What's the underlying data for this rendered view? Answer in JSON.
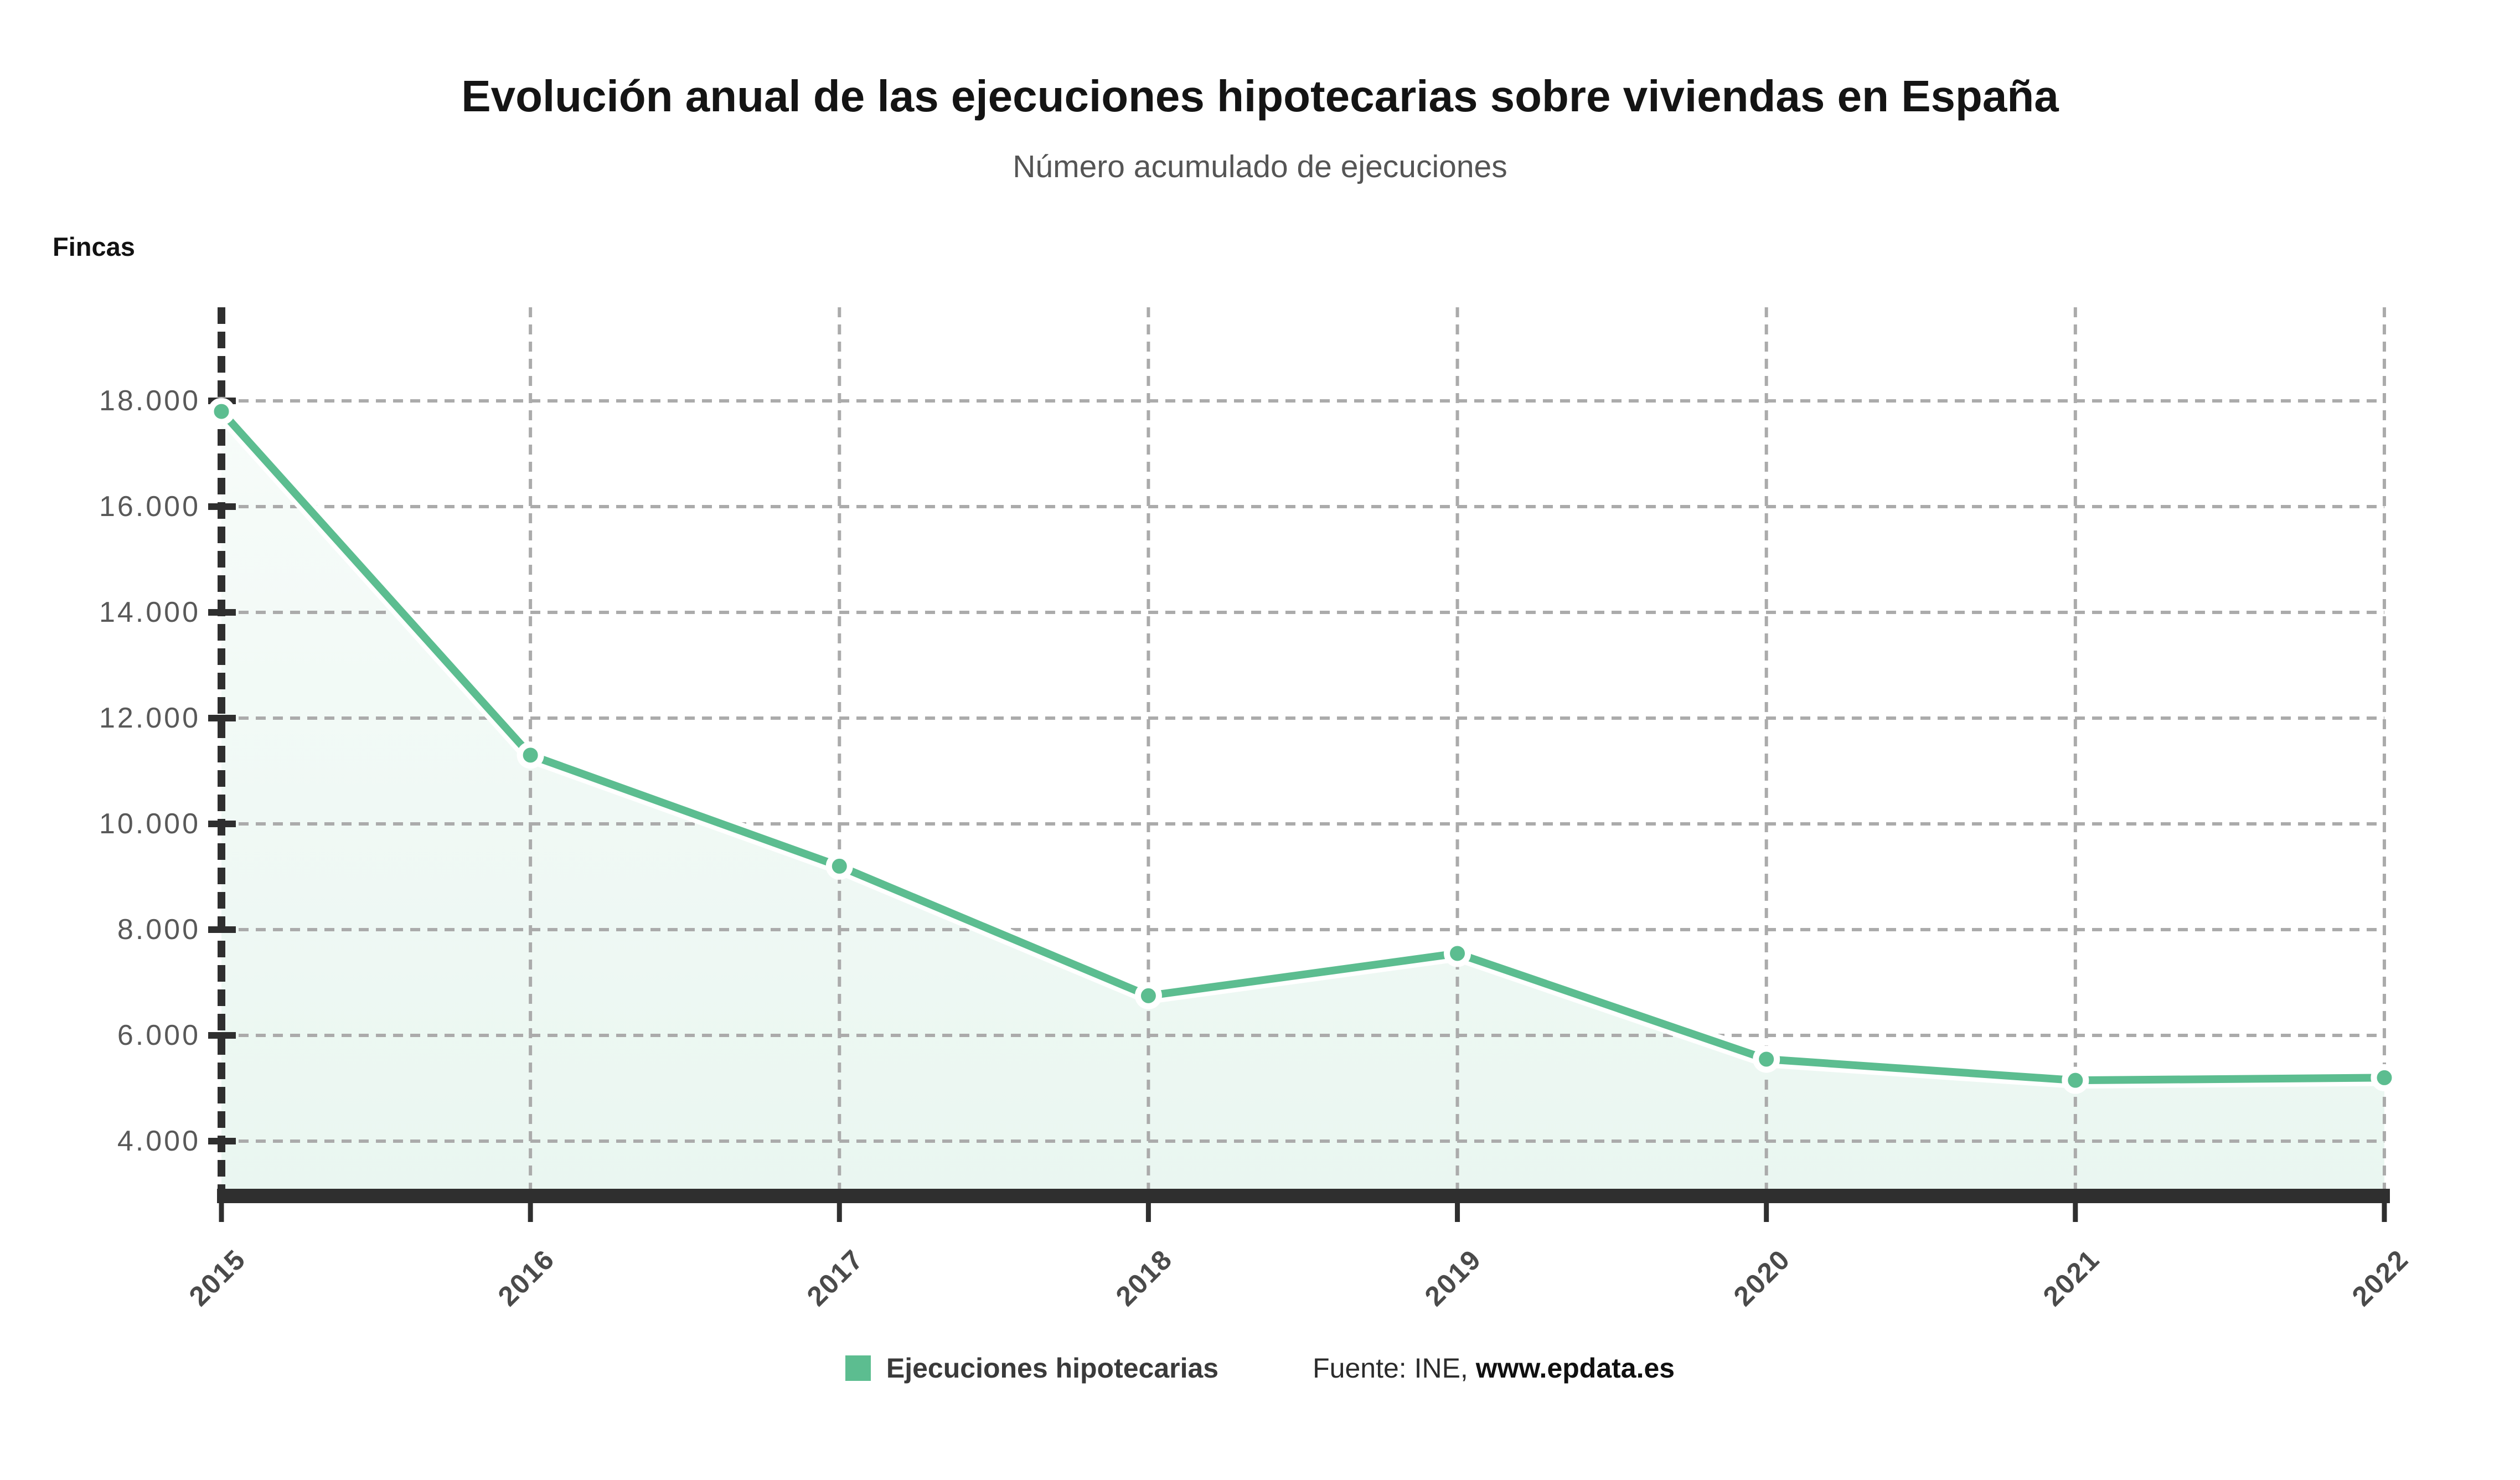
{
  "header": {
    "title": "Evolución anual de las ejecuciones hipotecarias sobre viviendas en España",
    "subtitle": "Número acumulado de ejecuciones",
    "y_axis_title": "Fincas"
  },
  "legend": {
    "series_label": "Ejecuciones hipotecarias",
    "source_label": "Fuente: INE,",
    "source_site": "www.epdata.es"
  },
  "colors": {
    "accent_green": "#5cbd90",
    "area_fill_top": "rgba(92,189,144,0.05)",
    "area_fill_bottom": "rgba(92,189,144,0.13)",
    "axis_dark": "#2f2f2f",
    "grid_gray": "#ababab",
    "tick_label_gray": "#595959",
    "background": "#ffffff"
  },
  "chart_data": {
    "type": "line",
    "title": "Evolución anual de las ejecuciones hipotecarias sobre viviendas en España",
    "subtitle": "Número acumulado de ejecuciones",
    "ylabel": "Fincas",
    "xlabel": "",
    "categories": [
      "2015",
      "2016",
      "2017",
      "2018",
      "2019",
      "2020",
      "2021",
      "2022"
    ],
    "series": [
      {
        "name": "Ejecuciones hipotecarias",
        "values": [
          17800,
          11300,
          9200,
          6750,
          7550,
          5550,
          5150,
          5200
        ]
      }
    ],
    "ytick_values": [
      4000,
      6000,
      8000,
      10000,
      12000,
      14000,
      16000,
      18000
    ],
    "ytick_labels": [
      "4.000",
      "6.000",
      "8.000",
      "10.000",
      "12.000",
      "14.000",
      "16.000",
      "18.000"
    ],
    "ylim": [
      3100,
      19770
    ],
    "grid": "dashed",
    "area_fill": true,
    "marker": "circle",
    "legend_position": "bottom"
  }
}
